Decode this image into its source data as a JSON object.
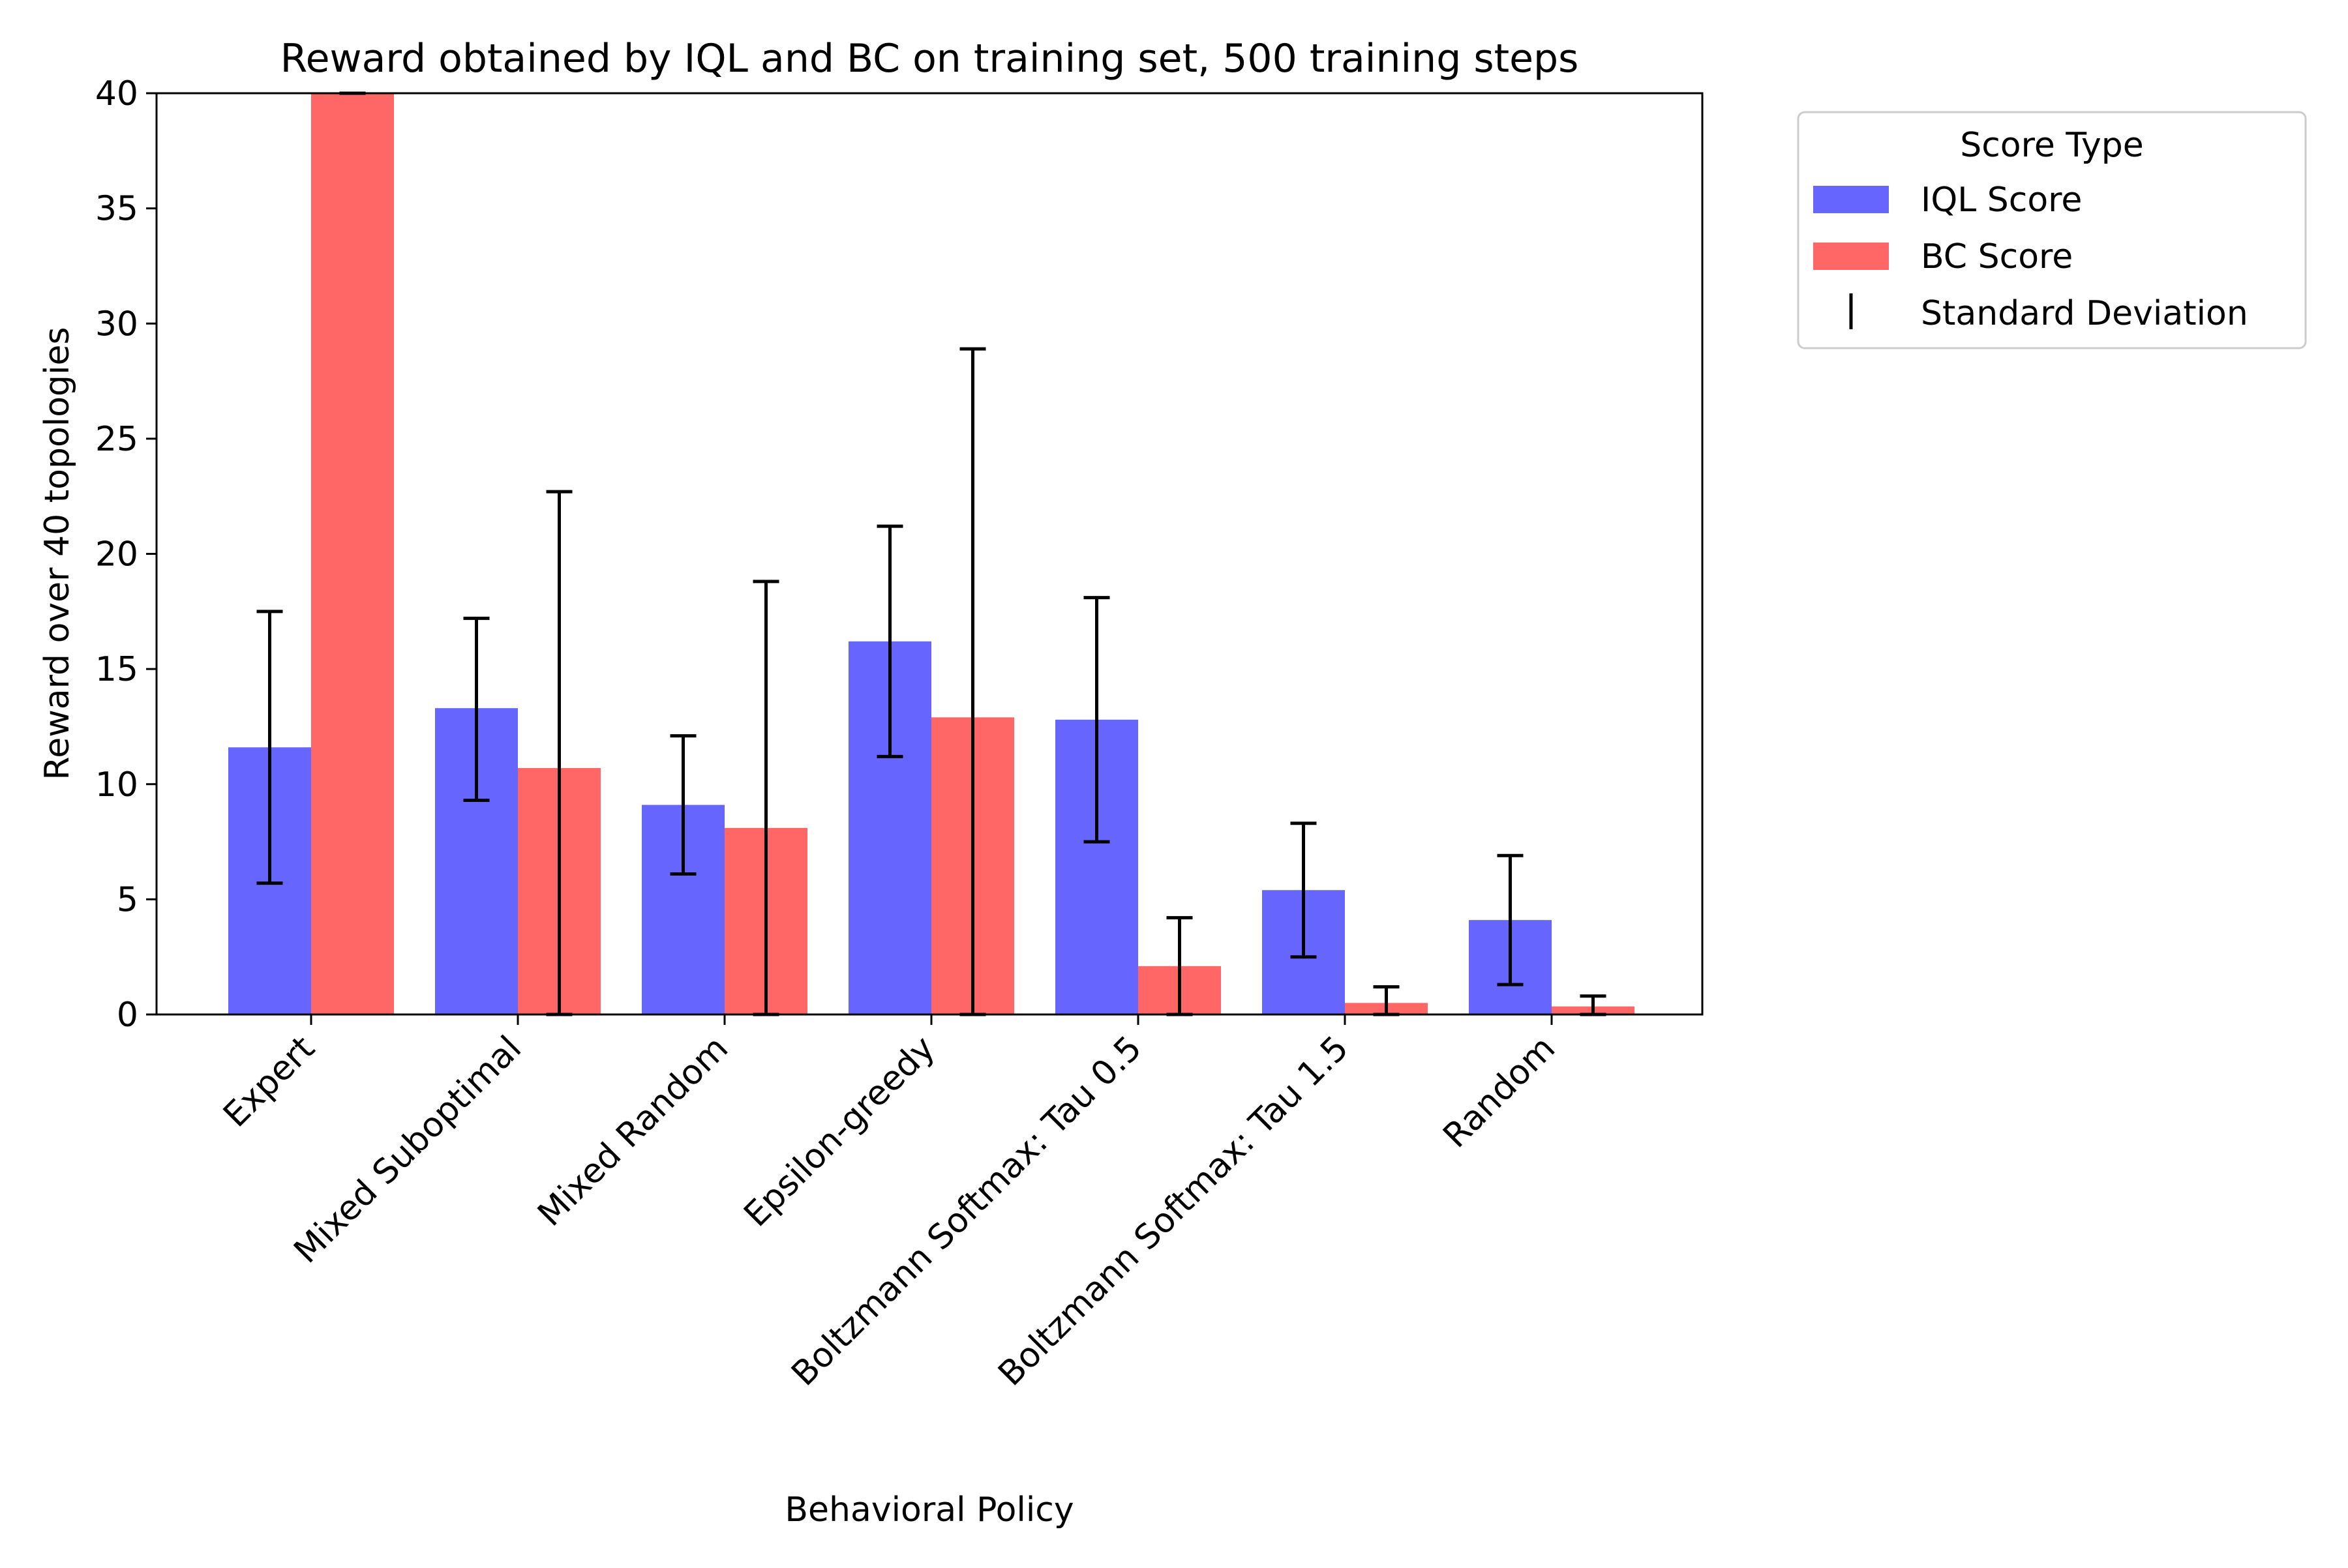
{
  "chart_data": {
    "type": "bar",
    "title": "Reward obtained by IQL and BC on training set, 500 training steps",
    "xlabel": "Behavioral Policy",
    "ylabel": "Reward over 40 topologies",
    "ylim": [
      0,
      40
    ],
    "yticks": [
      0,
      5,
      10,
      15,
      20,
      25,
      30,
      35,
      40
    ],
    "grid": false,
    "categories": [
      "Expert",
      "Mixed Suboptimal",
      "Mixed Random",
      "Epsilon-greedy",
      "Boltzmann Softmax: Tau 0.5",
      "Boltzmann Softmax: Tau 1.5",
      "Random"
    ],
    "series": [
      {
        "name": "IQL Score",
        "color": "#6666ff",
        "values": [
          11.6,
          13.3,
          9.1,
          16.2,
          12.8,
          5.4,
          4.1
        ],
        "error_low": [
          5.7,
          9.3,
          6.1,
          11.2,
          7.5,
          2.5,
          1.3
        ],
        "error_high": [
          17.5,
          17.2,
          12.1,
          21.2,
          18.1,
          8.3,
          6.9
        ]
      },
      {
        "name": "BC Score",
        "color": "#ff6666",
        "values": [
          40.0,
          10.7,
          8.1,
          12.9,
          2.1,
          0.5,
          0.35
        ],
        "error_low": [
          40.0,
          0.0,
          0.0,
          0.0,
          0.0,
          0.0,
          0.0
        ],
        "error_high": [
          40.0,
          22.7,
          18.8,
          28.9,
          4.2,
          1.2,
          0.8
        ]
      }
    ],
    "legend": {
      "title": "Score Type",
      "placement": "outside-top-right",
      "entries": [
        "IQL Score",
        "BC Score",
        "Standard Deviation"
      ]
    }
  }
}
